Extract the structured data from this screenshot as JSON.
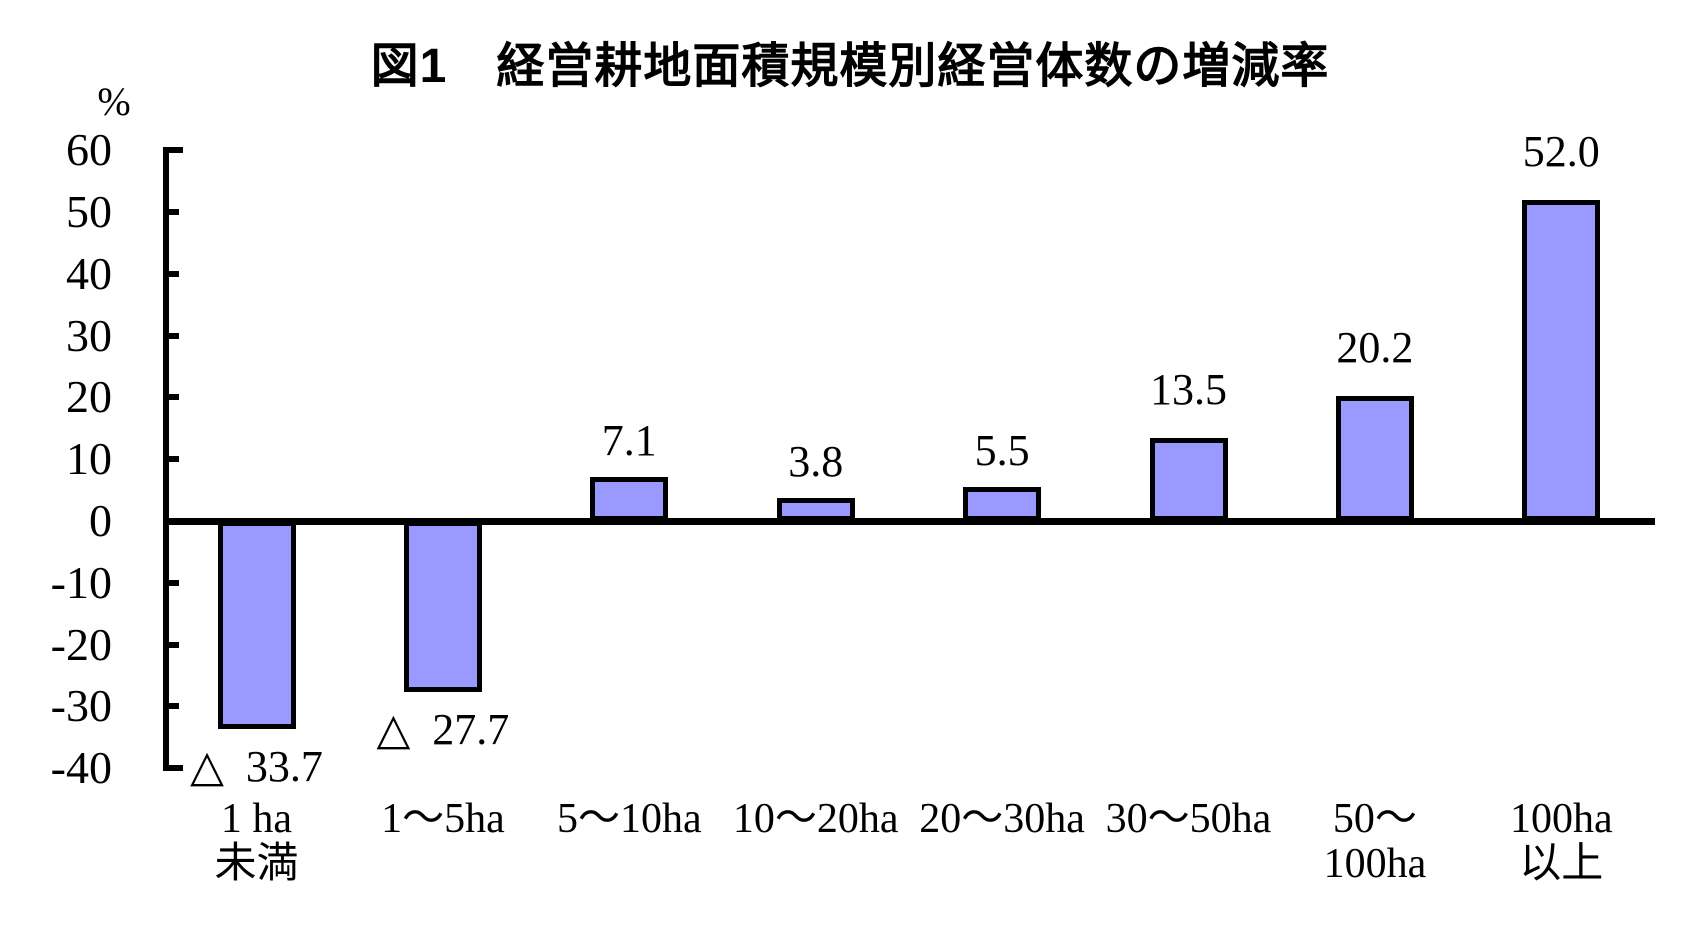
{
  "chart_data": {
    "type": "bar",
    "title": "図1　経営耕地面積規模別経営体数の増減率",
    "ylabel": "%",
    "xlabel": "",
    "categories": [
      "1 ha\n未満",
      "1～5ha",
      "5～10ha",
      "10～20ha",
      "20～30ha",
      "30～50ha",
      "50～\n100ha",
      "100ha\n以上"
    ],
    "values": [
      -33.7,
      -27.7,
      7.1,
      3.8,
      5.5,
      13.5,
      20.2,
      52.0
    ],
    "value_labels": [
      "△  33.7",
      "△  27.7",
      "7.1",
      "3.8",
      "5.5",
      "13.5",
      "20.2",
      "52.0"
    ],
    "negative_marker": "△",
    "ylim": [
      -40,
      60
    ],
    "yticks": [
      60,
      50,
      40,
      30,
      20,
      10,
      0,
      -10,
      -20,
      -30,
      -40
    ],
    "grid": false,
    "legend": null,
    "colors": {
      "bar_fill": "#9999FF",
      "bar_border": "#000000",
      "axis": "#000000",
      "text": "#000000",
      "background": "#FFFFFF"
    }
  }
}
